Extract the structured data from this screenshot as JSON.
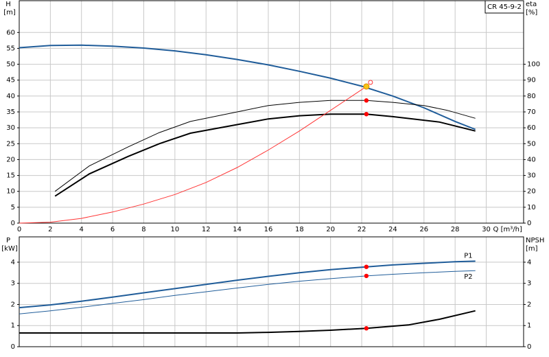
{
  "chart_data": [
    {
      "type": "line",
      "title": "CR 45-9-2",
      "x_label": "Q [m³/h]",
      "y_label": "H",
      "y_unit": "[m]",
      "y2_label": "eta",
      "y2_unit": "[%]",
      "xlim": [
        0,
        32.4
      ],
      "xticks": [
        0,
        2,
        4,
        6,
        8,
        10,
        12,
        14,
        16,
        18,
        20,
        22,
        24,
        26,
        28,
        30
      ],
      "ylim": [
        0,
        70
      ],
      "yticks": [
        0,
        5,
        10,
        15,
        20,
        25,
        30,
        35,
        40,
        45,
        50,
        55,
        60
      ],
      "y2lim": [
        0,
        140
      ],
      "y2ticks": [
        0,
        10,
        20,
        30,
        40,
        50,
        60,
        70,
        80,
        90,
        100
      ],
      "grid": true,
      "series": [
        {
          "color": "#1f5c99",
          "width": 2,
          "axis": "y",
          "x": [
            0,
            2,
            4,
            6,
            8,
            10,
            12,
            14,
            16,
            18,
            20,
            22,
            24,
            26,
            28,
            29.3
          ],
          "values": [
            55.2,
            55.9,
            56,
            55.7,
            55.1,
            54.2,
            53,
            51.5,
            49.8,
            47.8,
            45.6,
            43.1,
            40,
            36.3,
            32,
            29.5
          ]
        },
        {
          "color": "#000000",
          "width": 1,
          "axis": "y2",
          "x": [
            2.3,
            4.5,
            7,
            9,
            11,
            14,
            16,
            18,
            20,
            22.3,
            24,
            26,
            27.5,
            29.3
          ],
          "values": [
            20,
            36,
            48,
            57,
            64,
            70,
            74,
            76,
            77.2,
            77.2,
            76,
            74,
            71,
            66
          ]
        },
        {
          "color": "#000000",
          "width": 2,
          "axis": "y2",
          "x": [
            2.3,
            4.5,
            7,
            9,
            11,
            14,
            16,
            18,
            20,
            22.3,
            24,
            27,
            29.3
          ],
          "values": [
            17,
            31,
            42,
            50,
            56.6,
            62,
            65.6,
            67.6,
            68.6,
            68.6,
            67,
            63.6,
            58
          ]
        },
        {
          "color": "#ff3333",
          "width": 1,
          "axis": "y",
          "x": [
            0,
            2,
            4,
            6,
            8,
            10,
            12,
            14,
            16,
            18,
            20,
            22.3
          ],
          "values": [
            0,
            0.3,
            1.5,
            3.5,
            6,
            9,
            12.8,
            17.5,
            23,
            29,
            35.5,
            43
          ]
        }
      ],
      "points": [
        {
          "x": 22.3,
          "value": 43,
          "axis": "y",
          "color": "#f5c518"
        },
        {
          "x": 22.3,
          "value": 77.2,
          "axis": "y2",
          "color": "#ff0000"
        },
        {
          "x": 22.3,
          "value": 68.6,
          "axis": "y2",
          "color": "#ff0000"
        }
      ]
    },
    {
      "type": "line",
      "y_label": "P",
      "y_unit": "[kW]",
      "y2_label": "NPSH",
      "y2_unit": "[m]",
      "xlim": [
        0,
        32.4
      ],
      "ylim": [
        0,
        5.2
      ],
      "yticks": [
        0,
        1,
        2,
        3,
        4
      ],
      "y2lim": [
        0,
        5.2
      ],
      "y2ticks": [
        0,
        1,
        2,
        3,
        4
      ],
      "grid": true,
      "series": [
        {
          "name": "P1",
          "color": "#1f5c99",
          "width": 2,
          "axis": "y",
          "x": [
            0,
            2,
            4,
            6,
            8,
            10,
            12,
            14,
            16,
            18,
            20,
            22.3,
            24,
            26,
            28,
            29.3
          ],
          "values": [
            1.85,
            1.98,
            2.15,
            2.35,
            2.55,
            2.75,
            2.95,
            3.15,
            3.33,
            3.5,
            3.65,
            3.78,
            3.87,
            3.95,
            4.02,
            4.05
          ]
        },
        {
          "name": "P2",
          "color": "#1f5c99",
          "width": 1,
          "axis": "y",
          "x": [
            0,
            2,
            4,
            6,
            8,
            10,
            12,
            14,
            16,
            18,
            20,
            22.3,
            24,
            26,
            28,
            29.3
          ],
          "values": [
            1.55,
            1.7,
            1.87,
            2.05,
            2.23,
            2.43,
            2.6,
            2.78,
            2.95,
            3.1,
            3.22,
            3.35,
            3.43,
            3.5,
            3.57,
            3.6
          ]
        },
        {
          "color": "#000000",
          "width": 2,
          "axis": "y2",
          "x": [
            0,
            11.2,
            14,
            16,
            18,
            20,
            22.3,
            25,
            27,
            29.3
          ],
          "values": [
            0.65,
            0.65,
            0.65,
            0.68,
            0.72,
            0.78,
            0.87,
            1.03,
            1.3,
            1.7
          ]
        }
      ],
      "points": [
        {
          "x": 22.3,
          "value": 3.78,
          "axis": "y",
          "color": "#ff0000"
        },
        {
          "x": 22.3,
          "value": 3.35,
          "axis": "y",
          "color": "#ff0000"
        },
        {
          "x": 22.3,
          "value": 0.87,
          "axis": "y2",
          "color": "#ff0000"
        }
      ]
    }
  ]
}
